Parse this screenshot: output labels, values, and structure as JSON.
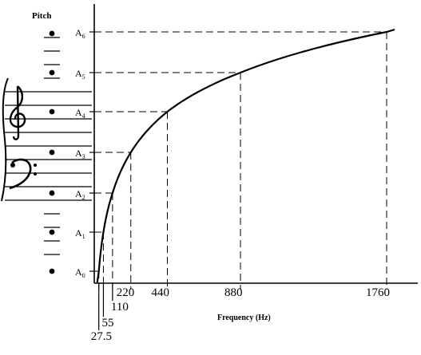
{
  "chart_data": {
    "type": "line",
    "title": "",
    "xlabel": "Frequency (Hz)",
    "ylabel": "Pitch",
    "x_scale": "linear",
    "xlim": [
      0,
      1800
    ],
    "y_categories": [
      "A0",
      "A1",
      "A2",
      "A3",
      "A4",
      "A5",
      "A6"
    ],
    "x_tick_labels": [
      {
        "value": 27.5,
        "label": "27.5"
      },
      {
        "value": 55,
        "label": "55"
      },
      {
        "value": 110,
        "label": "110"
      },
      {
        "value": 220,
        "label": "220"
      },
      {
        "value": 440,
        "label": "440"
      },
      {
        "value": 880,
        "label": "880"
      },
      {
        "value": 1760,
        "label": "1760"
      }
    ],
    "y_tick_labels": [
      {
        "base": "A",
        "sub": "0"
      },
      {
        "base": "A",
        "sub": "1"
      },
      {
        "base": "A",
        "sub": "2"
      },
      {
        "base": "A",
        "sub": "3"
      },
      {
        "base": "A",
        "sub": "4"
      },
      {
        "base": "A",
        "sub": "5"
      },
      {
        "base": "A",
        "sub": "6"
      }
    ],
    "series": [
      {
        "points": [
          {
            "x": 27.5,
            "y": 0
          },
          {
            "x": 55,
            "y": 1
          },
          {
            "x": 110,
            "y": 2
          },
          {
            "x": 220,
            "y": 3
          },
          {
            "x": 440,
            "y": 4
          },
          {
            "x": 880,
            "y": 5
          },
          {
            "x": 1760,
            "y": 6
          }
        ]
      }
    ],
    "grid": false,
    "legend": "none",
    "guides": "dashed drop lines from each point to both axes",
    "staff_icons": [
      "treble-clef-icon",
      "bass-clef-icon"
    ]
  }
}
